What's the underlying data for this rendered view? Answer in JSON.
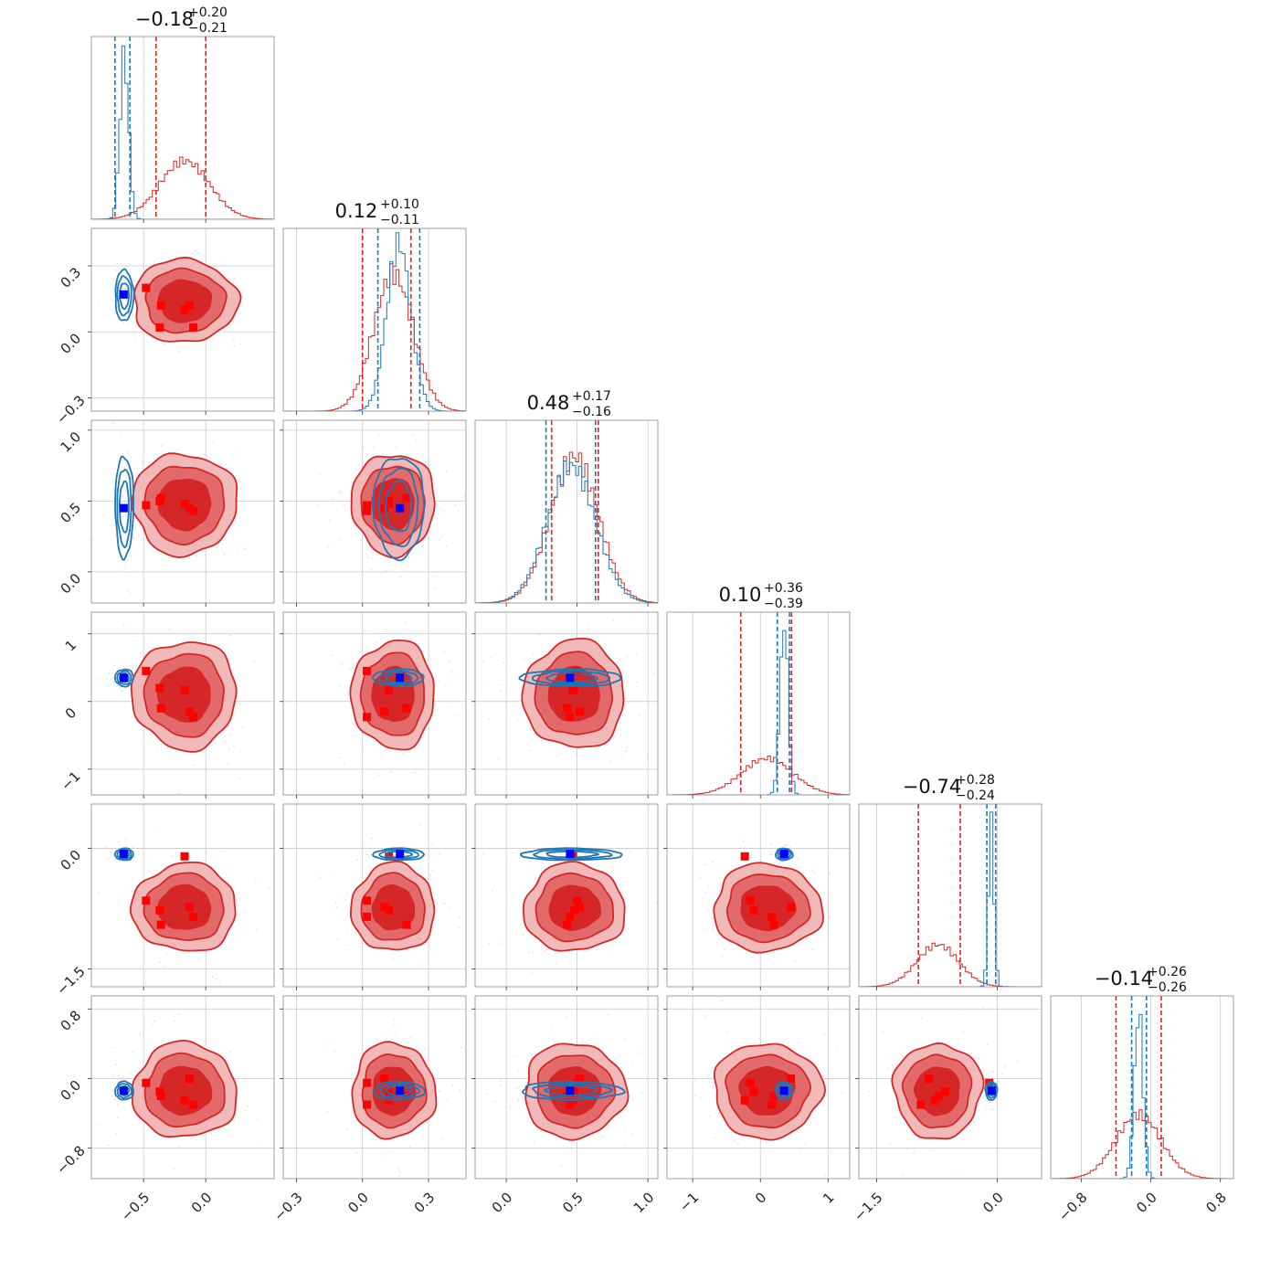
{
  "chart_data": {
    "type": "corner",
    "parameters": [
      {
        "title": {
          "median": "−0.18",
          "plus": "+0.20",
          "minus": "−0.21"
        },
        "lim": [
          -0.92,
          0.55
        ],
        "ticks": [
          -0.5,
          0.0
        ],
        "tick_labels": [
          "−0.5",
          "0.0"
        ],
        "red_quantiles": [
          -0.4,
          0.0
        ],
        "blue_quantiles": [
          -0.73,
          -0.61
        ],
        "red_hist": {
          "center": -0.17,
          "sigma": 0.2,
          "peak": 0.32
        },
        "blue_hist": {
          "center": -0.655,
          "sigma": 0.035,
          "peak": 0.9
        },
        "marker": -0.66,
        "red_points": [
          -0.48,
          -0.36,
          -0.17,
          -0.13,
          -0.37,
          -0.1
        ]
      },
      {
        "title": {
          "median": "0.12",
          "plus": "+0.10",
          "minus": "−0.11"
        },
        "lim": [
          -0.36,
          0.47
        ],
        "ticks": [
          -0.3,
          0.0,
          0.3
        ],
        "tick_labels": [
          "−0.3",
          "0.0",
          "0.3"
        ],
        "red_quantiles": [
          0.0,
          0.22
        ],
        "blue_quantiles": [
          0.07,
          0.26
        ],
        "red_hist": {
          "center": 0.14,
          "sigma": 0.09,
          "peak": 0.75
        },
        "blue_hist": {
          "center": 0.165,
          "sigma": 0.055,
          "peak": 0.92
        },
        "marker": 0.17,
        "red_points": [
          0.02,
          0.2,
          0.12,
          0.1,
          0.12,
          0.02
        ]
      },
      {
        "title": {
          "median": "0.48",
          "plus": "+0.17",
          "minus": "−0.16"
        },
        "lim": [
          -0.22,
          1.07
        ],
        "ticks": [
          0.0,
          0.5,
          1.0
        ],
        "tick_labels": [
          "0.0",
          "0.5",
          "1.0"
        ],
        "red_quantiles": [
          0.32,
          0.65
        ],
        "blue_quantiles": [
          0.28,
          0.63
        ],
        "red_hist": {
          "center": 0.48,
          "sigma": 0.17,
          "peak": 0.8
        },
        "blue_hist": {
          "center": 0.46,
          "sigma": 0.17,
          "peak": 0.75
        },
        "marker": 0.45,
        "red_points": [
          0.5,
          0.43,
          0.47,
          0.52,
          0.48,
          0.45
        ]
      },
      {
        "title": {
          "median": "0.10",
          "plus": "+0.36",
          "minus": "−0.39"
        },
        "lim": [
          -1.38,
          1.32
        ],
        "ticks": [
          -1,
          0,
          1
        ],
        "tick_labels": [
          "−1",
          "0",
          "1"
        ],
        "red_quantiles": [
          -0.29,
          0.46
        ],
        "blue_quantiles": [
          0.25,
          0.43
        ],
        "red_hist": {
          "center": 0.1,
          "sigma": 0.38,
          "peak": 0.2
        },
        "blue_hist": {
          "center": 0.35,
          "sigma": 0.06,
          "peak": 0.95
        },
        "marker": 0.35,
        "red_points": [
          -0.15,
          0.2,
          -0.23,
          0.45,
          -0.1,
          0.17
        ]
      },
      {
        "title": {
          "median": "−0.74",
          "plus": "+0.28",
          "minus": "−0.24"
        },
        "lim": [
          -1.72,
          0.55
        ],
        "ticks": [
          -1.5,
          0.0
        ],
        "tick_labels": [
          "−1.5",
          "0.0"
        ],
        "red_quantiles": [
          -0.98,
          -0.46
        ],
        "blue_quantiles": [
          -0.13,
          -0.02
        ],
        "red_hist": {
          "center": -0.74,
          "sigma": 0.26,
          "peak": 0.23
        },
        "blue_hist": {
          "center": -0.075,
          "sigma": 0.035,
          "peak": 0.9
        },
        "marker": -0.07,
        "red_points": [
          -0.1,
          -0.73,
          -0.77,
          -0.85,
          -0.65,
          -0.95
        ]
      },
      {
        "title": {
          "median": "−0.14",
          "plus": "+0.26",
          "minus": "−0.26"
        },
        "lim": [
          -1.15,
          0.95
        ],
        "ticks": [
          -0.8,
          0.0,
          0.8
        ],
        "tick_labels": [
          "−0.8",
          "0.0",
          "0.8"
        ],
        "red_quantiles": [
          -0.4,
          0.12
        ],
        "blue_quantiles": [
          -0.22,
          -0.05
        ],
        "red_hist": {
          "center": -0.14,
          "sigma": 0.26,
          "peak": 0.35
        },
        "blue_hist": {
          "center": -0.14,
          "sigma": 0.05,
          "peak": 0.92
        },
        "marker": -0.14,
        "red_points": [
          -0.2,
          -0.25,
          0.0,
          -0.15,
          -0.3,
          -0.05
        ]
      }
    ],
    "blue_pair_sigmas": [
      0.035,
      0.055,
      0.17,
      0.06,
      0.035,
      0.05
    ],
    "red_pair_sigmas": [
      0.2,
      0.09,
      0.17,
      0.38,
      0.26,
      0.26
    ],
    "red_color": "#d62728",
    "red_fill_inner": "#d62728",
    "red_fill_mid": "#e36a6b",
    "red_fill_outer": "#f2b9b9",
    "blue_color": "#1f77b4",
    "marker_color_red": "#ff0000",
    "marker_color_blue": "#0000ff",
    "grid": true
  }
}
